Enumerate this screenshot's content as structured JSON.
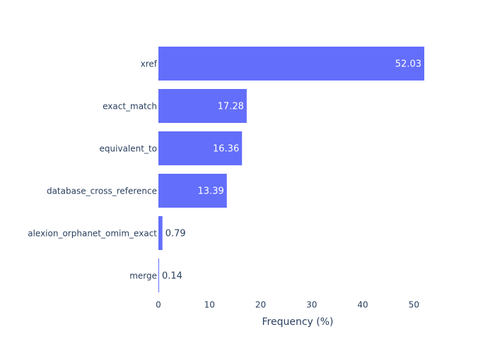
{
  "chart_data": {
    "type": "bar",
    "orientation": "horizontal",
    "categories": [
      "xref",
      "exact_match",
      "equivalent_to",
      "database_cross_reference",
      "alexion_orphanet_omim_exact",
      "merge"
    ],
    "values": [
      52.03,
      17.28,
      16.36,
      13.39,
      0.79,
      0.14
    ],
    "value_labels": [
      "52.03",
      "17.28",
      "16.36",
      "13.39",
      "0.79",
      "0.14"
    ],
    "xlabel": "Frequency (%)",
    "ylabel": "",
    "title": "",
    "xlim": [
      0,
      52.03
    ],
    "xticks": [
      0,
      10,
      20,
      30,
      40,
      50
    ],
    "xtick_labels": [
      "0",
      "10",
      "20",
      "30",
      "40",
      "50"
    ],
    "grid": false,
    "bar_color": "#636efa",
    "text_color": "#2a3f5f",
    "inside_label_color": "#ffffff"
  }
}
